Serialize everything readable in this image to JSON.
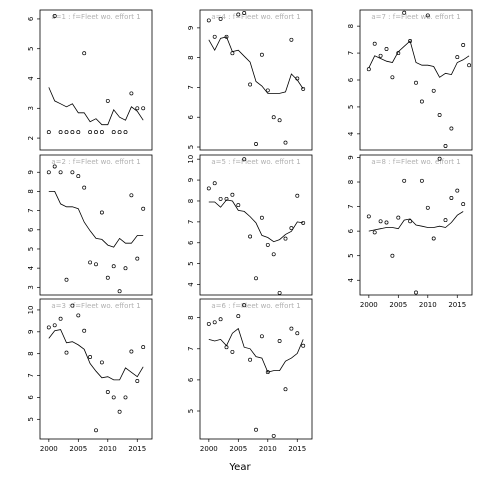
{
  "chart_data": {
    "type": "scatter",
    "xlabel": "Year",
    "x_ticks": [
      2000,
      2005,
      2010,
      2015
    ],
    "xlim": [
      1998.5,
      2017.5
    ],
    "panels": [
      {
        "label": "a=1 : f=Fleet wo. effort 1",
        "ylim": [
          1.6,
          6.3
        ],
        "y_ticks": [
          2,
          3,
          4,
          5,
          6
        ],
        "points": [
          [
            2000,
            2.2
          ],
          [
            2001,
            6.1
          ],
          [
            2002,
            2.2
          ],
          [
            2003,
            2.2
          ],
          [
            2004,
            2.2
          ],
          [
            2005,
            2.2
          ],
          [
            2006,
            4.85
          ],
          [
            2007,
            2.2
          ],
          [
            2008,
            2.2
          ],
          [
            2009,
            2.2
          ],
          [
            2010,
            3.25
          ],
          [
            2011,
            2.2
          ],
          [
            2012,
            2.2
          ],
          [
            2013,
            2.2
          ],
          [
            2014,
            3.5
          ],
          [
            2015,
            3.0
          ],
          [
            2016,
            3.0
          ]
        ],
        "fit": [
          [
            2000,
            3.7
          ],
          [
            2001,
            3.25
          ],
          [
            2002,
            3.15
          ],
          [
            2003,
            3.05
          ],
          [
            2004,
            3.15
          ],
          [
            2005,
            2.85
          ],
          [
            2006,
            2.85
          ],
          [
            2007,
            2.55
          ],
          [
            2008,
            2.65
          ],
          [
            2009,
            2.45
          ],
          [
            2010,
            2.45
          ],
          [
            2011,
            2.95
          ],
          [
            2012,
            2.7
          ],
          [
            2013,
            2.6
          ],
          [
            2014,
            3.05
          ],
          [
            2015,
            2.9
          ],
          [
            2016,
            2.6
          ]
        ]
      },
      {
        "label": "a=2 : f=Fleet wo. effort 1",
        "ylim": [
          2.6,
          9.9
        ],
        "y_ticks": [
          3,
          4,
          5,
          6,
          7,
          8,
          9
        ],
        "points": [
          [
            2000,
            9.0
          ],
          [
            2001,
            9.3
          ],
          [
            2002,
            9.0
          ],
          [
            2003,
            3.4
          ],
          [
            2004,
            9.0
          ],
          [
            2005,
            8.8
          ],
          [
            2006,
            8.2
          ],
          [
            2007,
            4.3
          ],
          [
            2008,
            4.2
          ],
          [
            2009,
            6.9
          ],
          [
            2010,
            3.5
          ],
          [
            2011,
            4.1
          ],
          [
            2012,
            2.8
          ],
          [
            2013,
            4.0
          ],
          [
            2014,
            7.8
          ],
          [
            2015,
            4.5
          ],
          [
            2016,
            7.1
          ]
        ],
        "fit": [
          [
            2000,
            8.0
          ],
          [
            2001,
            8.0
          ],
          [
            2002,
            7.35
          ],
          [
            2003,
            7.2
          ],
          [
            2004,
            7.2
          ],
          [
            2005,
            7.1
          ],
          [
            2006,
            6.4
          ],
          [
            2007,
            5.95
          ],
          [
            2008,
            5.55
          ],
          [
            2009,
            5.5
          ],
          [
            2010,
            5.2
          ],
          [
            2011,
            5.1
          ],
          [
            2012,
            5.55
          ],
          [
            2013,
            5.3
          ],
          [
            2014,
            5.3
          ],
          [
            2015,
            5.7
          ],
          [
            2016,
            5.7
          ]
        ]
      },
      {
        "label": "a=3 : f=Fleet wo. effort 1",
        "ylim": [
          4.1,
          10.5
        ],
        "y_ticks": [
          5,
          6,
          7,
          8,
          9,
          10
        ],
        "points": [
          [
            2000,
            9.2
          ],
          [
            2001,
            9.3
          ],
          [
            2002,
            9.6
          ],
          [
            2003,
            8.05
          ],
          [
            2004,
            10.2
          ],
          [
            2005,
            9.75
          ],
          [
            2006,
            9.05
          ],
          [
            2007,
            7.85
          ],
          [
            2008,
            4.5
          ],
          [
            2009,
            7.6
          ],
          [
            2010,
            6.25
          ],
          [
            2011,
            6.0
          ],
          [
            2012,
            5.35
          ],
          [
            2013,
            6.0
          ],
          [
            2014,
            8.1
          ],
          [
            2015,
            6.75
          ],
          [
            2016,
            8.3
          ]
        ],
        "fit": [
          [
            2000,
            8.7
          ],
          [
            2001,
            9.05
          ],
          [
            2002,
            9.1
          ],
          [
            2003,
            8.5
          ],
          [
            2004,
            8.55
          ],
          [
            2005,
            8.4
          ],
          [
            2006,
            8.2
          ],
          [
            2007,
            7.55
          ],
          [
            2008,
            7.2
          ],
          [
            2009,
            6.9
          ],
          [
            2010,
            6.95
          ],
          [
            2011,
            6.8
          ],
          [
            2012,
            6.8
          ],
          [
            2013,
            7.35
          ],
          [
            2014,
            7.15
          ],
          [
            2015,
            6.95
          ],
          [
            2016,
            7.4
          ]
        ]
      },
      {
        "label": "a=4 : f=Fleet wo. effort 1",
        "ylim": [
          4.9,
          9.6
        ],
        "y_ticks": [
          5,
          6,
          7,
          8,
          9
        ],
        "points": [
          [
            2000,
            9.25
          ],
          [
            2001,
            8.7
          ],
          [
            2002,
            9.3
          ],
          [
            2003,
            8.7
          ],
          [
            2004,
            8.15
          ],
          [
            2005,
            9.45
          ],
          [
            2006,
            9.5
          ],
          [
            2007,
            7.1
          ],
          [
            2008,
            5.1
          ],
          [
            2009,
            8.1
          ],
          [
            2010,
            6.9
          ],
          [
            2011,
            6.0
          ],
          [
            2012,
            5.9
          ],
          [
            2013,
            5.15
          ],
          [
            2014,
            8.6
          ],
          [
            2015,
            7.3
          ],
          [
            2016,
            6.95
          ]
        ],
        "fit": [
          [
            2000,
            8.6
          ],
          [
            2001,
            8.25
          ],
          [
            2002,
            8.65
          ],
          [
            2003,
            8.7
          ],
          [
            2004,
            8.2
          ],
          [
            2005,
            8.25
          ],
          [
            2006,
            8.05
          ],
          [
            2007,
            7.85
          ],
          [
            2008,
            7.2
          ],
          [
            2009,
            7.05
          ],
          [
            2010,
            6.8
          ],
          [
            2011,
            6.8
          ],
          [
            2012,
            6.8
          ],
          [
            2013,
            6.85
          ],
          [
            2014,
            7.45
          ],
          [
            2015,
            7.25
          ],
          [
            2016,
            6.95
          ]
        ]
      },
      {
        "label": "a=5 : f=Fleet wo. effort 1",
        "ylim": [
          3.5,
          10.2
        ],
        "y_ticks": [
          4,
          5,
          6,
          7,
          8,
          9,
          10
        ],
        "points": [
          [
            2000,
            8.6
          ],
          [
            2001,
            8.85
          ],
          [
            2002,
            8.1
          ],
          [
            2003,
            8.1
          ],
          [
            2004,
            8.3
          ],
          [
            2005,
            7.8
          ],
          [
            2006,
            10.0
          ],
          [
            2007,
            6.3
          ],
          [
            2008,
            4.3
          ],
          [
            2009,
            7.2
          ],
          [
            2010,
            5.9
          ],
          [
            2011,
            5.45
          ],
          [
            2012,
            3.6
          ],
          [
            2013,
            6.2
          ],
          [
            2014,
            6.7
          ],
          [
            2015,
            8.25
          ],
          [
            2016,
            6.95
          ]
        ],
        "fit": [
          [
            2000,
            7.95
          ],
          [
            2001,
            7.95
          ],
          [
            2002,
            7.7
          ],
          [
            2003,
            8.05
          ],
          [
            2004,
            8.0
          ],
          [
            2005,
            7.55
          ],
          [
            2006,
            7.5
          ],
          [
            2007,
            7.25
          ],
          [
            2008,
            6.95
          ],
          [
            2009,
            6.35
          ],
          [
            2010,
            6.25
          ],
          [
            2011,
            6.05
          ],
          [
            2012,
            6.15
          ],
          [
            2013,
            6.4
          ],
          [
            2014,
            6.55
          ],
          [
            2015,
            7.0
          ],
          [
            2016,
            6.95
          ]
        ]
      },
      {
        "label": "a=6 : f=Fleet wo. effort 1",
        "ylim": [
          4.1,
          8.6
        ],
        "y_ticks": [
          5,
          6,
          7,
          8
        ],
        "points": [
          [
            2000,
            7.8
          ],
          [
            2001,
            7.85
          ],
          [
            2002,
            7.95
          ],
          [
            2003,
            7.05
          ],
          [
            2004,
            6.9
          ],
          [
            2005,
            8.05
          ],
          [
            2006,
            8.4
          ],
          [
            2007,
            6.65
          ],
          [
            2008,
            4.4
          ],
          [
            2009,
            7.4
          ],
          [
            2010,
            6.25
          ],
          [
            2011,
            4.2
          ],
          [
            2012,
            7.25
          ],
          [
            2013,
            5.7
          ],
          [
            2014,
            7.65
          ],
          [
            2015,
            7.5
          ],
          [
            2016,
            7.1
          ]
        ],
        "fit": [
          [
            2000,
            7.3
          ],
          [
            2001,
            7.25
          ],
          [
            2002,
            7.3
          ],
          [
            2003,
            7.1
          ],
          [
            2004,
            7.5
          ],
          [
            2005,
            7.65
          ],
          [
            2006,
            7.05
          ],
          [
            2007,
            7.0
          ],
          [
            2008,
            6.75
          ],
          [
            2009,
            6.7
          ],
          [
            2010,
            6.25
          ],
          [
            2011,
            6.3
          ],
          [
            2012,
            6.3
          ],
          [
            2013,
            6.6
          ],
          [
            2014,
            6.7
          ],
          [
            2015,
            6.85
          ],
          [
            2016,
            7.3
          ]
        ]
      },
      {
        "label": "a=7 : f=Fleet wo. effort 1",
        "ylim": [
          3.4,
          8.6
        ],
        "y_ticks": [
          4,
          5,
          6,
          7,
          8
        ],
        "points": [
          [
            2000,
            6.4
          ],
          [
            2001,
            7.35
          ],
          [
            2002,
            6.9
          ],
          [
            2003,
            7.15
          ],
          [
            2004,
            6.1
          ],
          [
            2005,
            7.0
          ],
          [
            2006,
            8.5
          ],
          [
            2007,
            7.45
          ],
          [
            2008,
            5.9
          ],
          [
            2009,
            5.2
          ],
          [
            2010,
            8.4
          ],
          [
            2011,
            5.6
          ],
          [
            2012,
            4.7
          ],
          [
            2013,
            3.55
          ],
          [
            2014,
            4.2
          ],
          [
            2015,
            6.85
          ],
          [
            2016,
            7.3
          ],
          [
            2017,
            6.55
          ]
        ],
        "fit": [
          [
            2000,
            6.45
          ],
          [
            2001,
            6.9
          ],
          [
            2002,
            6.8
          ],
          [
            2003,
            6.7
          ],
          [
            2004,
            6.65
          ],
          [
            2005,
            7.05
          ],
          [
            2006,
            7.25
          ],
          [
            2007,
            7.45
          ],
          [
            2008,
            6.65
          ],
          [
            2009,
            6.55
          ],
          [
            2010,
            6.55
          ],
          [
            2011,
            6.5
          ],
          [
            2012,
            6.1
          ],
          [
            2013,
            6.25
          ],
          [
            2014,
            6.2
          ],
          [
            2015,
            6.65
          ],
          [
            2016,
            6.75
          ],
          [
            2017,
            6.9
          ]
        ]
      },
      {
        "label": "a=8 : f=Fleet wo. effort 1",
        "ylim": [
          3.4,
          9.1
        ],
        "y_ticks": [
          4,
          5,
          6,
          7,
          8,
          9
        ],
        "points": [
          [
            2000,
            6.6
          ],
          [
            2001,
            5.95
          ],
          [
            2002,
            6.4
          ],
          [
            2003,
            6.35
          ],
          [
            2004,
            5.0
          ],
          [
            2005,
            6.55
          ],
          [
            2006,
            8.05
          ],
          [
            2007,
            6.4
          ],
          [
            2008,
            3.5
          ],
          [
            2009,
            8.05
          ],
          [
            2010,
            6.95
          ],
          [
            2011,
            5.7
          ],
          [
            2012,
            8.95
          ],
          [
            2013,
            6.45
          ],
          [
            2014,
            7.35
          ],
          [
            2015,
            7.65
          ],
          [
            2016,
            7.1
          ]
        ],
        "fit": [
          [
            2000,
            6.0
          ],
          [
            2001,
            6.05
          ],
          [
            2002,
            6.1
          ],
          [
            2003,
            6.15
          ],
          [
            2004,
            6.15
          ],
          [
            2005,
            6.1
          ],
          [
            2006,
            6.45
          ],
          [
            2007,
            6.5
          ],
          [
            2008,
            6.25
          ],
          [
            2009,
            6.2
          ],
          [
            2010,
            6.15
          ],
          [
            2011,
            6.15
          ],
          [
            2012,
            6.2
          ],
          [
            2013,
            6.15
          ],
          [
            2014,
            6.35
          ],
          [
            2015,
            6.65
          ],
          [
            2016,
            6.8
          ]
        ]
      }
    ]
  }
}
